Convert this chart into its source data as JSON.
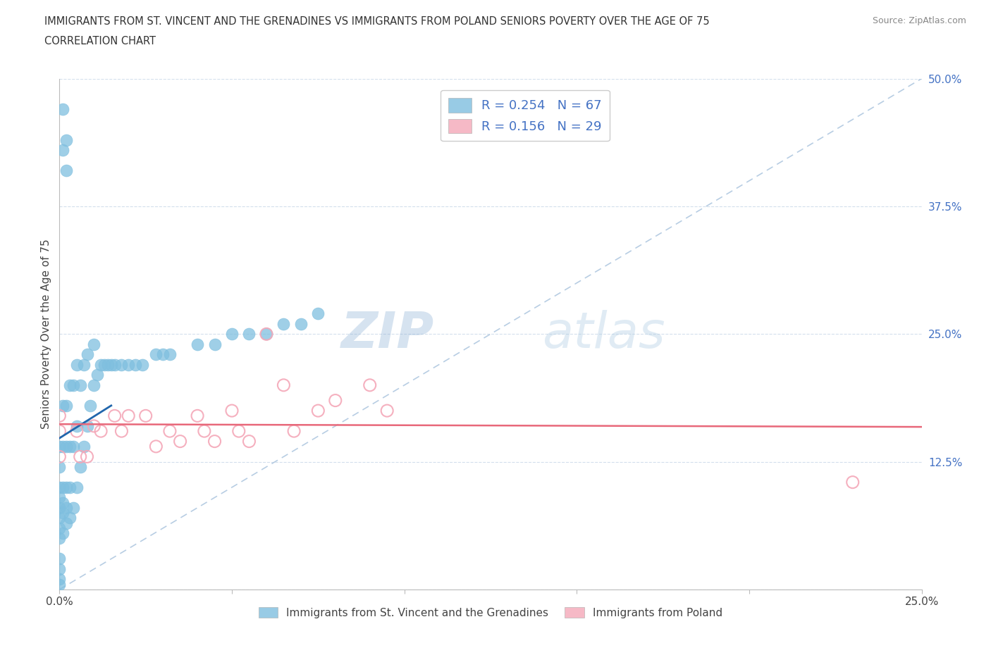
{
  "title_line1": "IMMIGRANTS FROM ST. VINCENT AND THE GRENADINES VS IMMIGRANTS FROM POLAND SENIORS POVERTY OVER THE AGE OF 75",
  "title_line2": "CORRELATION CHART",
  "source_text": "Source: ZipAtlas.com",
  "ylabel": "Seniors Poverty Over the Age of 75",
  "xlim": [
    0.0,
    0.25
  ],
  "ylim": [
    0.0,
    0.5
  ],
  "r_svg": 0.254,
  "n_svg": 67,
  "r_poland": 0.156,
  "n_poland": 29,
  "color_svg": "#7fbfdf",
  "color_poland": "#f4a8b8",
  "trendline_svg": "#2166ac",
  "trendline_poland": "#e8687a",
  "legend_label_svg": "Immigrants from St. Vincent and the Grenadines",
  "legend_label_poland": "Immigrants from Poland",
  "watermark_zip": "ZIP",
  "watermark_atlas": "atlas",
  "diag_color": "#b0c8e0",
  "grid_color": "#c8d8e8",
  "svg_x": [
    0.001,
    0.001,
    0.002,
    0.002,
    0.0,
    0.0,
    0.0,
    0.0,
    0.0,
    0.0,
    0.0,
    0.0,
    0.0,
    0.0,
    0.0,
    0.0,
    0.001,
    0.001,
    0.001,
    0.001,
    0.001,
    0.001,
    0.002,
    0.002,
    0.002,
    0.002,
    0.002,
    0.003,
    0.003,
    0.003,
    0.003,
    0.004,
    0.004,
    0.004,
    0.005,
    0.005,
    0.005,
    0.006,
    0.006,
    0.007,
    0.007,
    0.008,
    0.008,
    0.009,
    0.01,
    0.01,
    0.011,
    0.012,
    0.013,
    0.014,
    0.015,
    0.016,
    0.018,
    0.02,
    0.022,
    0.024,
    0.028,
    0.03,
    0.032,
    0.04,
    0.045,
    0.05,
    0.055,
    0.06,
    0.065,
    0.07,
    0.075
  ],
  "svg_y": [
    0.43,
    0.47,
    0.41,
    0.44,
    0.005,
    0.01,
    0.02,
    0.03,
    0.05,
    0.06,
    0.07,
    0.08,
    0.09,
    0.1,
    0.12,
    0.14,
    0.055,
    0.075,
    0.085,
    0.1,
    0.14,
    0.18,
    0.065,
    0.08,
    0.1,
    0.14,
    0.18,
    0.07,
    0.1,
    0.14,
    0.2,
    0.08,
    0.14,
    0.2,
    0.1,
    0.16,
    0.22,
    0.12,
    0.2,
    0.14,
    0.22,
    0.16,
    0.23,
    0.18,
    0.2,
    0.24,
    0.21,
    0.22,
    0.22,
    0.22,
    0.22,
    0.22,
    0.22,
    0.22,
    0.22,
    0.22,
    0.23,
    0.23,
    0.23,
    0.24,
    0.24,
    0.25,
    0.25,
    0.25,
    0.26,
    0.26,
    0.27
  ],
  "poland_x": [
    0.0,
    0.0,
    0.0,
    0.005,
    0.006,
    0.008,
    0.01,
    0.012,
    0.016,
    0.018,
    0.02,
    0.025,
    0.028,
    0.032,
    0.035,
    0.04,
    0.042,
    0.045,
    0.05,
    0.052,
    0.055,
    0.06,
    0.065,
    0.068,
    0.075,
    0.08,
    0.09,
    0.095,
    0.23
  ],
  "poland_y": [
    0.13,
    0.155,
    0.17,
    0.155,
    0.13,
    0.13,
    0.16,
    0.155,
    0.17,
    0.155,
    0.17,
    0.17,
    0.14,
    0.155,
    0.145,
    0.17,
    0.155,
    0.145,
    0.175,
    0.155,
    0.145,
    0.25,
    0.2,
    0.155,
    0.175,
    0.185,
    0.2,
    0.175,
    0.105
  ]
}
